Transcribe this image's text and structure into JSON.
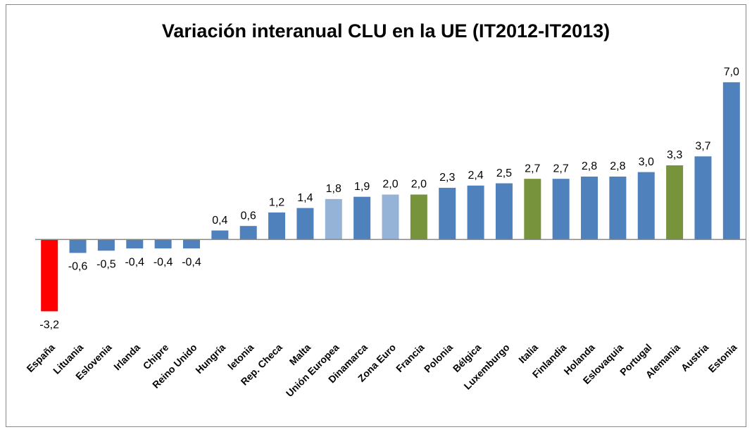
{
  "chart_data": {
    "type": "bar",
    "title": "Variación interanual CLU en la UE (IT2012-IT2013)",
    "categories": [
      "España",
      "Lituania",
      "Eslovenia",
      "Irlanda",
      "Chipre",
      "Reino Unido",
      "Hungría",
      "letonia",
      "Rep. Checa",
      "Malta",
      "Unión Europea",
      "Dinamarca",
      "Zona Euro",
      "Francia",
      "Polonia",
      "Bélgica",
      "Luxemburgo",
      "Italia",
      "Finlandia",
      "Holanda",
      "Eslovaquia",
      "Portugal",
      "Alemania",
      "Austria",
      "Estonia"
    ],
    "values": [
      -3.2,
      -0.6,
      -0.5,
      -0.4,
      -0.4,
      -0.4,
      0.4,
      0.6,
      1.2,
      1.4,
      1.8,
      1.9,
      2.0,
      2.0,
      2.3,
      2.4,
      2.5,
      2.7,
      2.7,
      2.8,
      2.8,
      3.0,
      3.3,
      3.7,
      7.0
    ],
    "value_labels": [
      "-3,2",
      "-0,6",
      "-0,5",
      "-0,4",
      "-0,4",
      "-0,4",
      "0,4",
      "0,6",
      "1,2",
      "1,4",
      "1,8",
      "1,9",
      "2,0",
      "2,0",
      "2,3",
      "2,4",
      "2,5",
      "2,7",
      "2,7",
      "2,8",
      "2,8",
      "3,0",
      "3,3",
      "3,7",
      "7,0"
    ],
    "colors": [
      "#ff0000",
      "#4f81bd",
      "#4f81bd",
      "#4f81bd",
      "#4f81bd",
      "#4f81bd",
      "#4f81bd",
      "#4f81bd",
      "#4f81bd",
      "#4f81bd",
      "#95b3d7",
      "#4f81bd",
      "#95b3d7",
      "#77933c",
      "#4f81bd",
      "#4f81bd",
      "#4f81bd",
      "#77933c",
      "#4f81bd",
      "#4f81bd",
      "#4f81bd",
      "#4f81bd",
      "#77933c",
      "#4f81bd",
      "#4f81bd"
    ],
    "ylim": [
      -4,
      8
    ]
  }
}
